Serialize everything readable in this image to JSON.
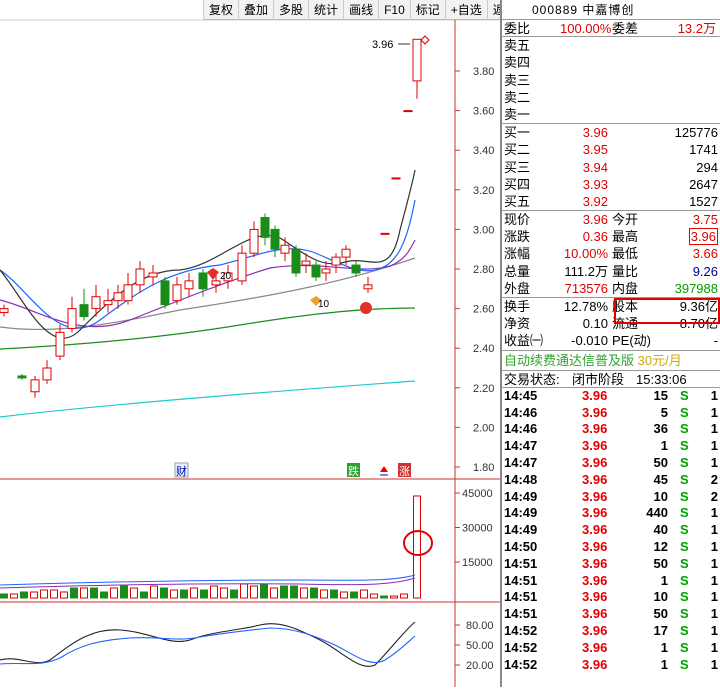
{
  "toolbar": [
    "复权",
    "叠加",
    "多股",
    "统计",
    "画线",
    "F10",
    "标记",
    "+自选",
    "返回"
  ],
  "stock": {
    "code": "000889",
    "name": "中嘉博创"
  },
  "price_axis": [
    "3.80",
    "3.60",
    "3.40",
    "3.20",
    "3.00",
    "2.80",
    "2.60",
    "2.40",
    "2.20",
    "2.00",
    "1.80"
  ],
  "high_label": "3.96",
  "badges": {
    "cai": "财",
    "die": "跌",
    "zhang": "涨",
    "n20": "20",
    "n10": "10"
  },
  "vol_axis": [
    "45000",
    "30000",
    "15000"
  ],
  "ind_axis": [
    "80.00",
    "50.00",
    "20.00"
  ],
  "quote": {
    "weibi_label": "委比",
    "weibi": "100.00%",
    "weicha_label": "委差",
    "weicha": "13.2万",
    "sells": [
      "卖五",
      "卖四",
      "卖三",
      "卖二",
      "卖一"
    ],
    "buys": [
      {
        "label": "买一",
        "price": "3.96",
        "vol": "125776"
      },
      {
        "label": "买二",
        "price": "3.95",
        "vol": "1741"
      },
      {
        "label": "买三",
        "price": "3.94",
        "vol": "294"
      },
      {
        "label": "买四",
        "price": "3.93",
        "vol": "2647"
      },
      {
        "label": "买五",
        "price": "3.92",
        "vol": "1527"
      }
    ],
    "stats": [
      {
        "l1": "现价",
        "v1": "3.96",
        "c1": "red",
        "l2": "今开",
        "v2": "3.75",
        "c2": "red"
      },
      {
        "l1": "涨跌",
        "v1": "0.36",
        "c1": "red",
        "l2": "最高",
        "v2": "3.96",
        "c2": "red"
      },
      {
        "l1": "涨幅",
        "v1": "10.00%",
        "c1": "red",
        "l2": "最低",
        "v2": "3.66",
        "c2": "red"
      },
      {
        "l1": "总量",
        "v1": "111.2万",
        "c1": "dk",
        "l2": "量比",
        "v2": "9.26",
        "c2": "blue"
      },
      {
        "l1": "外盘",
        "v1": "713576",
        "c1": "red",
        "l2": "内盘",
        "v2": "397988",
        "c2": "green"
      }
    ],
    "fin": [
      {
        "l1": "换手",
        "v1": "12.78%",
        "l2": "股本",
        "v2": "9.36亿"
      },
      {
        "l1": "净资",
        "v1": "0.10",
        "l2": "流通",
        "v2": "8.70亿"
      },
      {
        "l1": "收益㈠",
        "v1": "-0.010",
        "l2": "PE(动)",
        "v2": "-"
      }
    ],
    "ad": "自动续费通达信普及版",
    "ad_price": "30元/月",
    "status_label": "交易状态:",
    "status": "闭市阶段",
    "time": "15:33:06"
  },
  "trades": [
    {
      "t": "14:45",
      "p": "3.96",
      "pc": "red",
      "v": "15",
      "s": "S",
      "n": "1"
    },
    {
      "t": "14:46",
      "p": "3.96",
      "pc": "red",
      "v": "5",
      "s": "S",
      "n": "1"
    },
    {
      "t": "14:46",
      "p": "3.96",
      "pc": "red",
      "v": "36",
      "s": "S",
      "n": "1"
    },
    {
      "t": "14:47",
      "p": "3.96",
      "pc": "red",
      "v": "1",
      "s": "S",
      "n": "1"
    },
    {
      "t": "14:47",
      "p": "3.96",
      "pc": "red",
      "v": "50",
      "s": "S",
      "n": "1"
    },
    {
      "t": "14:48",
      "p": "3.96",
      "pc": "red",
      "v": "45",
      "s": "S",
      "n": "2"
    },
    {
      "t": "14:49",
      "p": "3.96",
      "pc": "red",
      "v": "10",
      "s": "S",
      "n": "2"
    },
    {
      "t": "14:49",
      "p": "3.96",
      "pc": "red",
      "v": "440",
      "s": "S",
      "n": "1"
    },
    {
      "t": "14:49",
      "p": "3.96",
      "pc": "red",
      "v": "40",
      "s": "S",
      "n": "1"
    },
    {
      "t": "14:50",
      "p": "3.96",
      "pc": "red",
      "v": "12",
      "s": "S",
      "n": "1"
    },
    {
      "t": "14:51",
      "p": "3.96",
      "pc": "red",
      "v": "50",
      "s": "S",
      "n": "1"
    },
    {
      "t": "14:51",
      "p": "3.96",
      "pc": "red",
      "v": "1",
      "s": "S",
      "n": "1"
    },
    {
      "t": "14:51",
      "p": "3.96",
      "pc": "red",
      "v": "10",
      "s": "S",
      "n": "1"
    },
    {
      "t": "14:51",
      "p": "3.96",
      "pc": "red",
      "v": "50",
      "s": "S",
      "n": "1"
    },
    {
      "t": "14:52",
      "p": "3.96",
      "pc": "red",
      "v": "17",
      "s": "S",
      "n": "1"
    },
    {
      "t": "14:52",
      "p": "3.96",
      "pc": "red",
      "v": "1",
      "s": "S",
      "n": "1"
    },
    {
      "t": "14:52",
      "p": "3.96",
      "pc": "red",
      "v": "1",
      "s": "S",
      "n": "1"
    }
  ],
  "colors": {
    "up": "#e00000",
    "down": "#1a8c1a",
    "ma5": "#333333",
    "ma10": "#1e64ff",
    "ma20": "#8b2bb3",
    "ma30": "#1a8c1a",
    "ma60": "#888888",
    "ma120": "#20c8d0",
    "highlight": "#e00000"
  }
}
